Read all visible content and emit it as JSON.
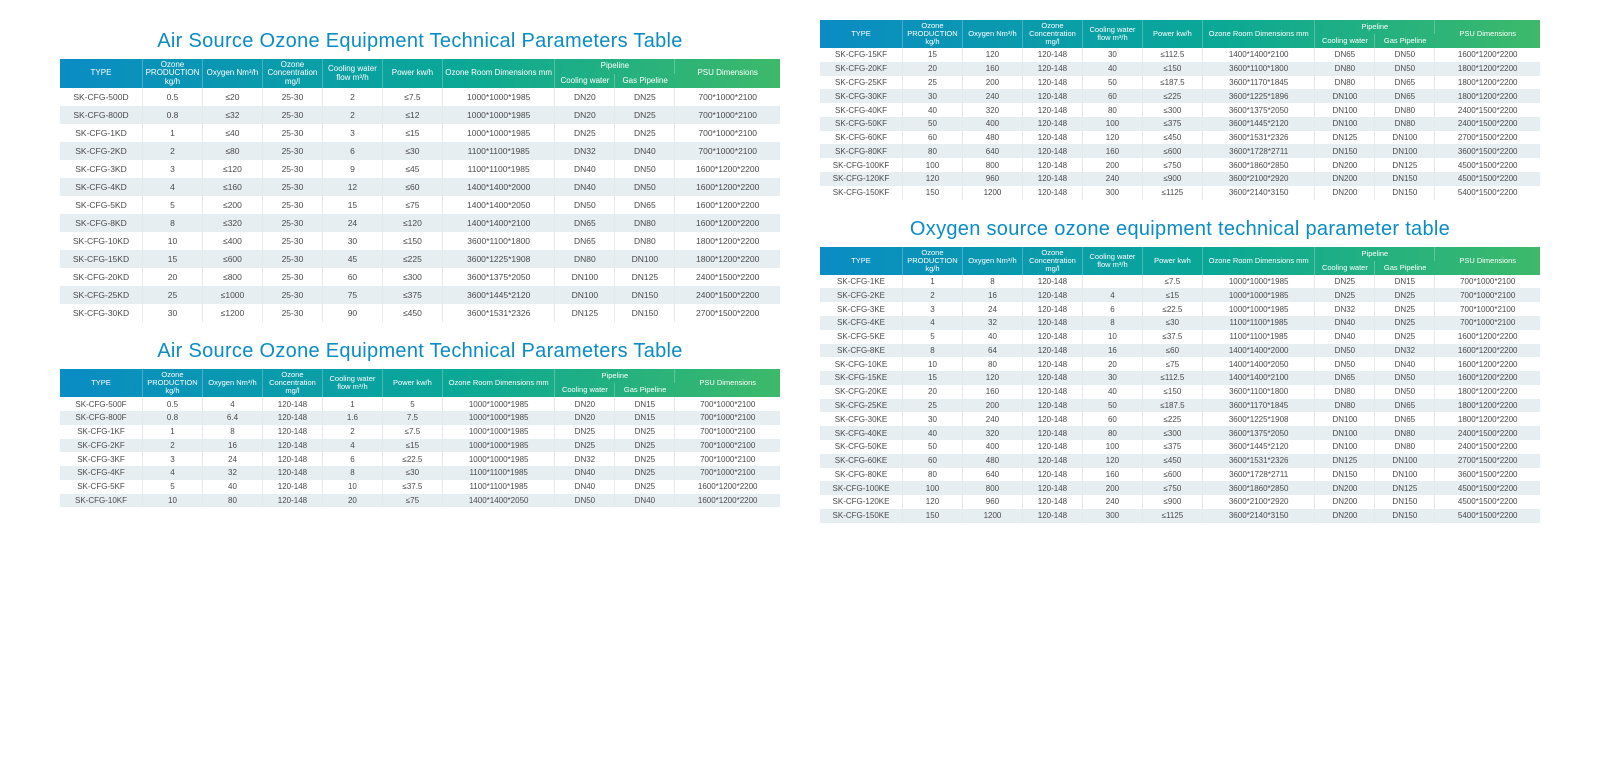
{
  "colors": {
    "title": "#0a8cc4",
    "header_gradient": [
      "#0a8cc4",
      "#0aa896",
      "#3db96a"
    ],
    "row_even_bg": "#e7eef1",
    "row_odd_bg": "#ffffff",
    "text": "#4a4a4a",
    "grid": "#e8e8e8"
  },
  "headers": {
    "type": "TYPE",
    "ozone_prod": "Ozone PRODUCTION kg/h",
    "oxygen": "Oxygen Nm³/h",
    "concentration": "Ozone Concentration mg/l",
    "cooling_flow": "Cooling water flow m³/h",
    "power_kwh": "Power kw/h",
    "power_kwh2": "Power kwh",
    "ozone_room": "Ozone Room Dimensions mm",
    "pipeline": "Pipeline",
    "cooling_water": "Cooling water",
    "gas_pipeline": "Gas Pipeline",
    "psu": "PSU Dimensions"
  },
  "titles": {
    "air": "Air Source Ozone Equipment Technical Parameters Table",
    "oxy": "Oxygen source ozone equipment technical parameter table"
  },
  "tables": {
    "t1": {
      "rows": [
        [
          "SK-CFG-500D",
          "0.5",
          "≤20",
          "25-30",
          "2",
          "≤7.5",
          "1000*1000*1985",
          "DN20",
          "DN25",
          "700*1000*2100"
        ],
        [
          "SK-CFG-800D",
          "0.8",
          "≤32",
          "25-30",
          "2",
          "≤12",
          "1000*1000*1985",
          "DN20",
          "DN25",
          "700*1000*2100"
        ],
        [
          "SK-CFG-1KD",
          "1",
          "≤40",
          "25-30",
          "3",
          "≤15",
          "1000*1000*1985",
          "DN25",
          "DN25",
          "700*1000*2100"
        ],
        [
          "SK-CFG-2KD",
          "2",
          "≤80",
          "25-30",
          "6",
          "≤30",
          "1100*1100*1985",
          "DN32",
          "DN40",
          "700*1000*2100"
        ],
        [
          "SK-CFG-3KD",
          "3",
          "≤120",
          "25-30",
          "9",
          "≤45",
          "1100*1100*1985",
          "DN40",
          "DN50",
          "1600*1200*2200"
        ],
        [
          "SK-CFG-4KD",
          "4",
          "≤160",
          "25-30",
          "12",
          "≤60",
          "1400*1400*2000",
          "DN40",
          "DN50",
          "1600*1200*2200"
        ],
        [
          "SK-CFG-5KD",
          "5",
          "≤200",
          "25-30",
          "15",
          "≤75",
          "1400*1400*2050",
          "DN50",
          "DN65",
          "1600*1200*2200"
        ],
        [
          "SK-CFG-8KD",
          "8",
          "≤320",
          "25-30",
          "24",
          "≤120",
          "1400*1400*2100",
          "DN65",
          "DN80",
          "1600*1200*2200"
        ],
        [
          "SK-CFG-10KD",
          "10",
          "≤400",
          "25-30",
          "30",
          "≤150",
          "3600*1100*1800",
          "DN65",
          "DN80",
          "1800*1200*2200"
        ],
        [
          "SK-CFG-15KD",
          "15",
          "≤600",
          "25-30",
          "45",
          "≤225",
          "3600*1225*1908",
          "DN80",
          "DN100",
          "1800*1200*2200"
        ],
        [
          "SK-CFG-20KD",
          "20",
          "≤800",
          "25-30",
          "60",
          "≤300",
          "3600*1375*2050",
          "DN100",
          "DN125",
          "2400*1500*2200"
        ],
        [
          "SK-CFG-25KD",
          "25",
          "≤1000",
          "25-30",
          "75",
          "≤375",
          "3600*1445*2120",
          "DN100",
          "DN150",
          "2400*1500*2200"
        ],
        [
          "SK-CFG-30KD",
          "30",
          "≤1200",
          "25-30",
          "90",
          "≤450",
          "3600*1531*2326",
          "DN125",
          "DN150",
          "2700*1500*2200"
        ]
      ]
    },
    "t2": {
      "rows": [
        [
          "SK-CFG-500F",
          "0.5",
          "4",
          "120-148",
          "1",
          "5",
          "1000*1000*1985",
          "DN20",
          "DN15",
          "700*1000*2100"
        ],
        [
          "SK-CFG-800F",
          "0.8",
          "6.4",
          "120-148",
          "1.6",
          "7.5",
          "1000*1000*1985",
          "DN20",
          "DN15",
          "700*1000*2100"
        ],
        [
          "SK-CFG-1KF",
          "1",
          "8",
          "120-148",
          "2",
          "≤7.5",
          "1000*1000*1985",
          "DN25",
          "DN25",
          "700*1000*2100"
        ],
        [
          "SK-CFG-2KF",
          "2",
          "16",
          "120-148",
          "4",
          "≤15",
          "1000*1000*1985",
          "DN25",
          "DN25",
          "700*1000*2100"
        ],
        [
          "SK-CFG-3KF",
          "3",
          "24",
          "120-148",
          "6",
          "≤22.5",
          "1000*1000*1985",
          "DN32",
          "DN25",
          "700*1000*2100"
        ],
        [
          "SK-CFG-4KF",
          "4",
          "32",
          "120-148",
          "8",
          "≤30",
          "1100*1100*1985",
          "DN40",
          "DN25",
          "700*1000*2100"
        ],
        [
          "SK-CFG-5KF",
          "5",
          "40",
          "120-148",
          "10",
          "≤37.5",
          "1100*1100*1985",
          "DN40",
          "DN25",
          "1600*1200*2200"
        ],
        [
          "SK-CFG-10KF",
          "10",
          "80",
          "120-148",
          "20",
          "≤75",
          "1400*1400*2050",
          "DN50",
          "DN40",
          "1600*1200*2200"
        ]
      ]
    },
    "t3": {
      "rows": [
        [
          "SK-CFG-15KF",
          "15",
          "120",
          "120-148",
          "30",
          "≤112.5",
          "1400*1400*2100",
          "DN65",
          "DN50",
          "1600*1200*2200"
        ],
        [
          "SK-CFG-20KF",
          "20",
          "160",
          "120-148",
          "40",
          "≤150",
          "3600*1100*1800",
          "DN80",
          "DN50",
          "1800*1200*2200"
        ],
        [
          "SK-CFG-25KF",
          "25",
          "200",
          "120-148",
          "50",
          "≤187.5",
          "3600*1170*1845",
          "DN80",
          "DN65",
          "1800*1200*2200"
        ],
        [
          "SK-CFG-30KF",
          "30",
          "240",
          "120-148",
          "60",
          "≤225",
          "3600*1225*1896",
          "DN100",
          "DN65",
          "1800*1200*2200"
        ],
        [
          "SK-CFG-40KF",
          "40",
          "320",
          "120-148",
          "80",
          "≤300",
          "3600*1375*2050",
          "DN100",
          "DN80",
          "2400*1500*2200"
        ],
        [
          "SK-CFG-50KF",
          "50",
          "400",
          "120-148",
          "100",
          "≤375",
          "3600*1445*2120",
          "DN100",
          "DN80",
          "2400*1500*2200"
        ],
        [
          "SK-CFG-60KF",
          "60",
          "480",
          "120-148",
          "120",
          "≤450",
          "3600*1531*2326",
          "DN125",
          "DN100",
          "2700*1500*2200"
        ],
        [
          "SK-CFG-80KF",
          "80",
          "640",
          "120-148",
          "160",
          "≤600",
          "3600*1728*2711",
          "DN150",
          "DN100",
          "3600*1500*2200"
        ],
        [
          "SK-CFG-100KF",
          "100",
          "800",
          "120-148",
          "200",
          "≤750",
          "3600*1860*2850",
          "DN200",
          "DN125",
          "4500*1500*2200"
        ],
        [
          "SK-CFG-120KF",
          "120",
          "960",
          "120-148",
          "240",
          "≤900",
          "3600*2100*2920",
          "DN200",
          "DN150",
          "4500*1500*2200"
        ],
        [
          "SK-CFG-150KF",
          "150",
          "1200",
          "120-148",
          "300",
          "≤1125",
          "3600*2140*3150",
          "DN200",
          "DN150",
          "5400*1500*2200"
        ]
      ]
    },
    "t4": {
      "rows": [
        [
          "SK-CFG-1KE",
          "1",
          "8",
          "120-148",
          "",
          "≤7.5",
          "1000*1000*1985",
          "DN25",
          "DN15",
          "700*1000*2100"
        ],
        [
          "SK-CFG-2KE",
          "2",
          "16",
          "120-148",
          "4",
          "≤15",
          "1000*1000*1985",
          "DN25",
          "DN25",
          "700*1000*2100"
        ],
        [
          "SK-CFG-3KE",
          "3",
          "24",
          "120-148",
          "6",
          "≤22.5",
          "1000*1000*1985",
          "DN32",
          "DN25",
          "700*1000*2100"
        ],
        [
          "SK-CFG-4KE",
          "4",
          "32",
          "120-148",
          "8",
          "≤30",
          "1100*1100*1985",
          "DN40",
          "DN25",
          "700*1000*2100"
        ],
        [
          "SK-CFG-5KE",
          "5",
          "40",
          "120-148",
          "10",
          "≤37.5",
          "1100*1100*1985",
          "DN40",
          "DN25",
          "1600*1200*2200"
        ],
        [
          "SK-CFG-8KE",
          "8",
          "64",
          "120-148",
          "16",
          "≤60",
          "1400*1400*2000",
          "DN50",
          "DN32",
          "1600*1200*2200"
        ],
        [
          "SK-CFG-10KE",
          "10",
          "80",
          "120-148",
          "20",
          "≤75",
          "1400*1400*2050",
          "DN50",
          "DN40",
          "1600*1200*2200"
        ],
        [
          "SK-CFG-15KE",
          "15",
          "120",
          "120-148",
          "30",
          "≤112.5",
          "1400*1400*2100",
          "DN65",
          "DN50",
          "1600*1200*2200"
        ],
        [
          "SK-CFG-20KE",
          "20",
          "160",
          "120-148",
          "40",
          "≤150",
          "3600*1100*1800",
          "DN80",
          "DN50",
          "1800*1200*2200"
        ],
        [
          "SK-CFG-25KE",
          "25",
          "200",
          "120-148",
          "50",
          "≤187.5",
          "3600*1170*1845",
          "DN80",
          "DN65",
          "1800*1200*2200"
        ],
        [
          "SK-CFG-30KE",
          "30",
          "240",
          "120-148",
          "60",
          "≤225",
          "3600*1225*1908",
          "DN100",
          "DN65",
          "1800*1200*2200"
        ],
        [
          "SK-CFG-40KE",
          "40",
          "320",
          "120-148",
          "80",
          "≤300",
          "3600*1375*2050",
          "DN100",
          "DN80",
          "2400*1500*2200"
        ],
        [
          "SK-CFG-50KE",
          "50",
          "400",
          "120-148",
          "100",
          "≤375",
          "3600*1445*2120",
          "DN100",
          "DN80",
          "2400*1500*2200"
        ],
        [
          "SK-CFG-60KE",
          "60",
          "480",
          "120-148",
          "120",
          "≤450",
          "3600*1531*2326",
          "DN125",
          "DN100",
          "2700*1500*2200"
        ],
        [
          "SK-CFG-80KE",
          "80",
          "640",
          "120-148",
          "160",
          "≤600",
          "3600*1728*2711",
          "DN150",
          "DN100",
          "3600*1500*2200"
        ],
        [
          "SK-CFG-100KE",
          "100",
          "800",
          "120-148",
          "200",
          "≤750",
          "3600*1860*2850",
          "DN200",
          "DN125",
          "4500*1500*2200"
        ],
        [
          "SK-CFG-120KE",
          "120",
          "960",
          "120-148",
          "240",
          "≤900",
          "3600*2100*2920",
          "DN200",
          "DN150",
          "4500*1500*2200"
        ],
        [
          "SK-CFG-150KE",
          "150",
          "1200",
          "120-148",
          "300",
          "≤1125",
          "3600*2140*3150",
          "DN200",
          "DN150",
          "5400*1500*2200"
        ]
      ]
    }
  }
}
